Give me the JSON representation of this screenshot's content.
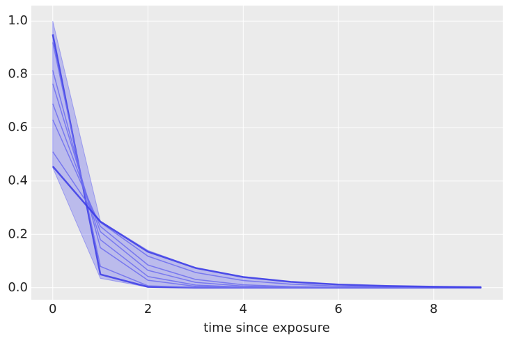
{
  "chart_data": {
    "type": "line",
    "x_label": "time since exposure",
    "x": [
      0,
      1,
      2,
      3,
      4,
      5,
      6,
      7,
      8,
      9
    ],
    "band": {
      "color": "#4b4bf0",
      "upper": [
        1.0,
        0.25,
        0.14,
        0.075,
        0.042,
        0.023,
        0.013,
        0.007,
        0.004,
        0.002
      ],
      "lower": [
        0.45,
        0.035,
        0.002,
        0,
        0,
        0,
        0,
        0,
        0,
        0
      ]
    },
    "series": [
      {
        "color": "#3a3ae6",
        "width": 2.5,
        "values": [
          0.95,
          0.05,
          0.003,
          0,
          0,
          0,
          0,
          0,
          0,
          0
        ]
      },
      {
        "color": "#6c6cee",
        "width": 1.5,
        "values": [
          0.92,
          0.08,
          0.007,
          0.001,
          0,
          0,
          0,
          0,
          0,
          0
        ]
      },
      {
        "color": "#6c6cee",
        "width": 1.5,
        "values": [
          0.815,
          0.15,
          0.028,
          0.005,
          0.001,
          0,
          0,
          0,
          0,
          0
        ]
      },
      {
        "color": "#6c6cee",
        "width": 1.5,
        "values": [
          0.765,
          0.18,
          0.042,
          0.01,
          0.002,
          0,
          0,
          0,
          0,
          0
        ]
      },
      {
        "color": "#6c6cee",
        "width": 1.5,
        "values": [
          0.69,
          0.21,
          0.065,
          0.02,
          0.006,
          0.002,
          0.001,
          0,
          0,
          0
        ]
      },
      {
        "color": "#6c6cee",
        "width": 1.5,
        "values": [
          0.63,
          0.23,
          0.085,
          0.031,
          0.011,
          0.004,
          0.0015,
          0.0005,
          0,
          0
        ]
      },
      {
        "color": "#6c6cee",
        "width": 1.5,
        "values": [
          0.51,
          0.245,
          0.118,
          0.057,
          0.027,
          0.013,
          0.006,
          0.003,
          0.0015,
          0.0007
        ]
      },
      {
        "color": "#3a3ae6",
        "width": 2.5,
        "values": [
          0.455,
          0.248,
          0.135,
          0.074,
          0.04,
          0.022,
          0.012,
          0.0066,
          0.0036,
          0.002
        ]
      }
    ],
    "xlim": [
      -0.45,
      9.45
    ],
    "ylim": [
      -0.045,
      1.058
    ],
    "xticks": [
      0,
      2,
      4,
      6,
      8
    ],
    "yticks": [
      {
        "value": 0,
        "label": "0.0"
      },
      {
        "value": 0.2,
        "label": "0.2"
      },
      {
        "value": 0.4,
        "label": "0.4"
      },
      {
        "value": 0.6,
        "label": "0.6"
      },
      {
        "value": 0.8,
        "label": "0.8"
      },
      {
        "value": 1.0,
        "label": "1.0"
      }
    ],
    "grid": true
  }
}
